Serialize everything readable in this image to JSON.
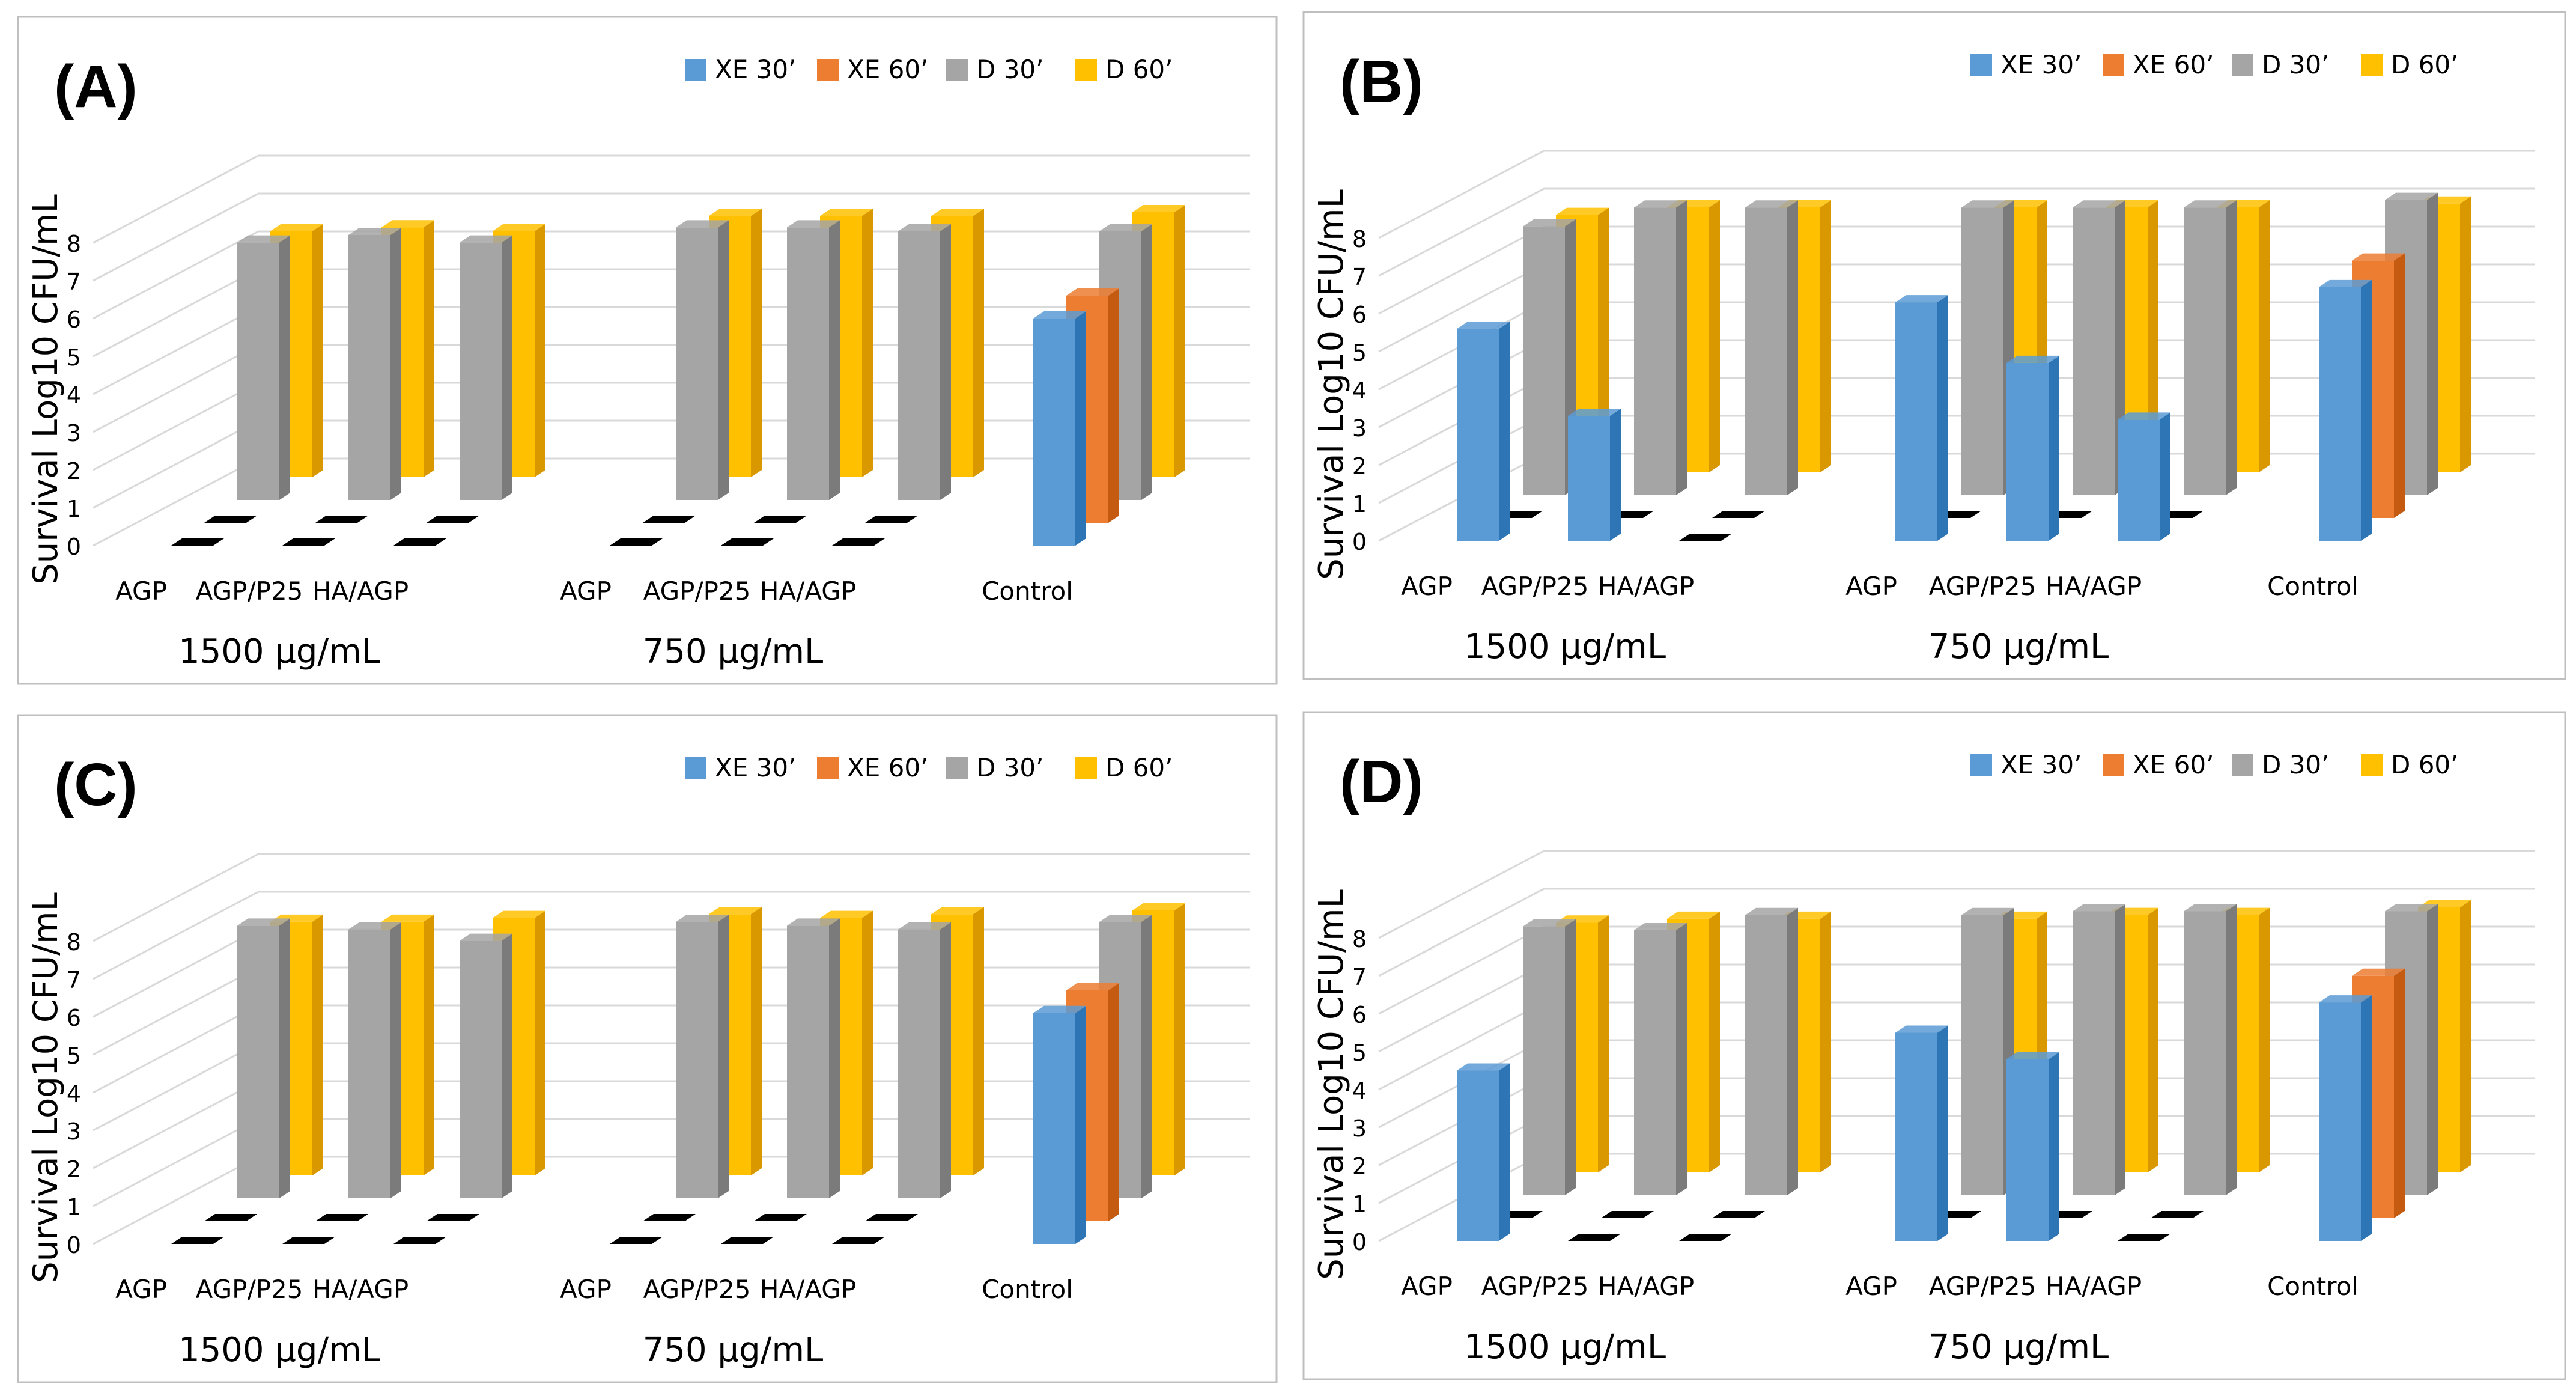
{
  "colors": {
    "xe30": "#5b9bd5",
    "xe30_dark": "#2e75b6",
    "xe60": "#ed7d31",
    "xe60_dark": "#c55a11",
    "d30": "#a5a5a5",
    "d30_dark": "#7b7b7b",
    "d60": "#ffc000",
    "d60_dark": "#d99800",
    "grid": "#d9d9d9",
    "frame": "#bfbfbf",
    "text": "#000000"
  },
  "chart_data": [
    {
      "type": "bar",
      "title": "(A)",
      "ylabel": "Survival Log10 CFU/mL",
      "yticks": [
        "0",
        "1",
        "2",
        "3",
        "4",
        "5",
        "6",
        "7",
        "8"
      ],
      "ylim": [
        0,
        8
      ],
      "legend": [
        "XE 30’",
        "XE 60’",
        "D 30’",
        "D 60’"
      ],
      "categories": [
        "AGP",
        "AGP/P25",
        "HA/AGP",
        "AGP",
        "AGP/P25",
        "HA/AGP",
        "Control"
      ],
      "group_labels": [
        "1500 μg/mL",
        "750 μg/mL"
      ],
      "series": [
        {
          "name": "XE 30’",
          "values": [
            0,
            0,
            0,
            0,
            0,
            0,
            6.0
          ]
        },
        {
          "name": "XE 60’",
          "values": [
            0,
            0,
            0,
            0,
            0,
            0,
            6.0
          ]
        },
        {
          "name": "D 30’",
          "values": [
            6.8,
            7.0,
            6.8,
            7.2,
            7.2,
            7.1,
            7.1
          ]
        },
        {
          "name": "D 60’",
          "values": [
            6.5,
            6.6,
            6.5,
            6.9,
            6.9,
            6.9,
            7.0
          ]
        }
      ]
    },
    {
      "type": "bar",
      "title": "(B)",
      "ylabel": "Survival Log10 CFU/mL",
      "yticks": [
        "0",
        "1",
        "2",
        "3",
        "4",
        "5",
        "6",
        "7",
        "8"
      ],
      "ylim": [
        0,
        8
      ],
      "legend": [
        "XE 30’",
        "XE 60’",
        "D 30’",
        "D 60’"
      ],
      "categories": [
        "AGP",
        "AGP/P25",
        "HA/AGP",
        "AGP",
        "AGP/P25",
        "HA/AGP",
        "Control"
      ],
      "group_labels": [
        "1500 μg/mL",
        "750 μg/mL"
      ],
      "series": [
        {
          "name": "XE 30’",
          "values": [
            5.6,
            3.3,
            0,
            6.3,
            4.7,
            3.2,
            6.7
          ]
        },
        {
          "name": "XE 60’",
          "values": [
            0,
            0,
            0,
            0,
            0,
            0,
            6.8
          ]
        },
        {
          "name": "D 30’",
          "values": [
            7.1,
            7.6,
            7.6,
            7.6,
            7.6,
            7.6,
            7.8
          ]
        },
        {
          "name": "D 60’",
          "values": [
            6.8,
            7.0,
            7.0,
            7.0,
            7.0,
            7.0,
            7.1
          ]
        }
      ]
    },
    {
      "type": "bar",
      "title": "(C)",
      "ylabel": "Survival Log10 CFU/mL",
      "yticks": [
        "0",
        "1",
        "2",
        "3",
        "4",
        "5",
        "6",
        "7",
        "8"
      ],
      "ylim": [
        0,
        8
      ],
      "legend": [
        "XE 30’",
        "XE 60’",
        "D 30’",
        "D 60’"
      ],
      "categories": [
        "AGP",
        "AGP/P25",
        "HA/AGP",
        "AGP",
        "AGP/P25",
        "HA/AGP",
        "Control"
      ],
      "group_labels": [
        "1500 μg/mL",
        "750 μg/mL"
      ],
      "series": [
        {
          "name": "XE 30’",
          "values": [
            0,
            0,
            0,
            0,
            0,
            0,
            6.1
          ]
        },
        {
          "name": "XE 60’",
          "values": [
            0,
            0,
            0,
            0,
            0,
            0,
            6.1
          ]
        },
        {
          "name": "D 30’",
          "values": [
            7.2,
            7.1,
            6.8,
            7.3,
            7.2,
            7.1,
            7.3
          ]
        },
        {
          "name": "D 60’",
          "values": [
            6.7,
            6.7,
            6.8,
            6.9,
            6.8,
            6.9,
            7.0
          ]
        }
      ]
    },
    {
      "type": "bar",
      "title": "(D)",
      "ylabel": "Survival Log10 CFU/mL",
      "yticks": [
        "0",
        "1",
        "2",
        "3",
        "4",
        "5",
        "6",
        "7",
        "8"
      ],
      "ylim": [
        0,
        8
      ],
      "legend": [
        "XE 30’",
        "XE 60’",
        "D 30’",
        "D 60’"
      ],
      "categories": [
        "AGP",
        "AGP/P25",
        "HA/AGP",
        "AGP",
        "AGP/P25",
        "HA/AGP",
        "Control"
      ],
      "group_labels": [
        "1500 μg/mL",
        "750 μg/mL"
      ],
      "series": [
        {
          "name": "XE 30’",
          "values": [
            4.5,
            0,
            0,
            5.5,
            4.8,
            0,
            6.3
          ]
        },
        {
          "name": "XE 60’",
          "values": [
            0,
            0,
            0,
            0,
            0,
            0,
            6.4
          ]
        },
        {
          "name": "D 30’",
          "values": [
            7.1,
            7.0,
            7.4,
            7.4,
            7.5,
            7.5,
            7.5
          ]
        },
        {
          "name": "D 60’",
          "values": [
            6.6,
            6.7,
            6.7,
            6.7,
            6.8,
            6.8,
            7.0
          ]
        }
      ]
    }
  ]
}
